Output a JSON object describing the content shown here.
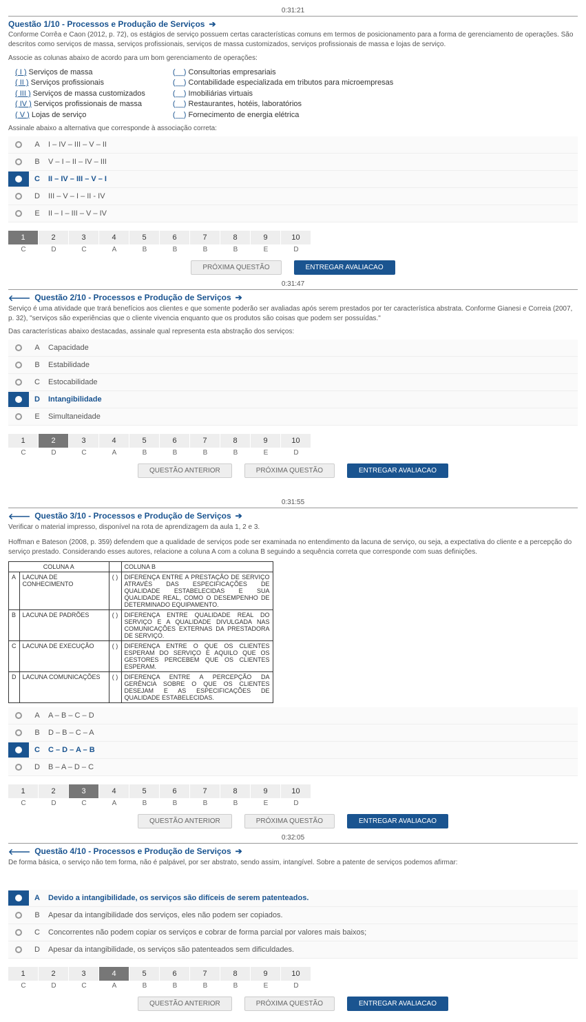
{
  "nav_answers": [
    "C",
    "D",
    "C",
    "A",
    "B",
    "B",
    "B",
    "B",
    "E",
    "D"
  ],
  "buttons": {
    "prev": "QUESTÃO ANTERIOR",
    "next": "PRÓXIMA QUESTÃO",
    "submit": "ENTREGAR AVALIACAO"
  },
  "q1": {
    "timer": "0:31:21",
    "title": "Questão 1/10 - Processos e Produção de Serviços",
    "intro": "Conforme Corrêa e Caon (2012, p. 72), os estágios de serviço possuem certas características comuns em termos de posicionamento para a forma de gerenciamento de operações. São descritos como serviços de massa, serviços profissionais, serviços de massa customizados, serviços profissionais de massa e lojas de serviço.",
    "assoc_prompt": "Associe as colunas abaixo de acordo para um bom gerenciamento de operações:",
    "left": [
      {
        "r": "( I )",
        "t": "Serviços de massa"
      },
      {
        "r": "( II )",
        "t": "Serviços profissionais"
      },
      {
        "r": "( III )",
        "t": "Serviços de massa customizados"
      },
      {
        "r": "( IV )",
        "t": "Serviços profissionais de massa"
      },
      {
        "r": "( V )",
        "t": "Lojas de serviço"
      }
    ],
    "right": [
      "Consultorias empresariais",
      "Contabilidade especializada em tributos para microempresas",
      "Imobiliárias virtuais",
      "Restaurantes, hotéis, laboratórios",
      "Fornecimento de energia elétrica"
    ],
    "choose": "Assinale abaixo a alternativa que corresponde à associação correta:",
    "opts": [
      {
        "l": "A",
        "t": "I – IV – III – V – II"
      },
      {
        "l": "B",
        "t": "V – I – II – IV – III"
      },
      {
        "l": "C",
        "t": "II – IV – III – V – I"
      },
      {
        "l": "D",
        "t": "III – V – I – II - IV"
      },
      {
        "l": "E",
        "t": "II – I – III – V – IV"
      }
    ],
    "selected": 2,
    "active_nav": 1
  },
  "q2": {
    "timer": "0:31:47",
    "title": "Questão 2/10 - Processos e Produção de Serviços",
    "intro": "Serviço é uma atividade que trará benefícios aos clientes e que somente poderão ser avaliadas após serem prestados por ter característica abstrata. Conforme Gianesi e Correia (2007, p. 32), \"serviços são experiências que o cliente vivencia enquanto que os produtos são coisas que podem ser possuídas.\"",
    "choose": "Das características abaixo destacadas, assinale qual representa esta abstração dos serviços:",
    "opts": [
      {
        "l": "A",
        "t": "Capacidade"
      },
      {
        "l": "B",
        "t": "Estabilidade"
      },
      {
        "l": "C",
        "t": "Estocabilidade"
      },
      {
        "l": "D",
        "t": "Intangibilidade"
      },
      {
        "l": "E",
        "t": "Simultaneidade"
      }
    ],
    "selected": 3,
    "active_nav": 2
  },
  "q3": {
    "timer": "0:31:55",
    "title": "Questão 3/10 - Processos e Produção de Serviços",
    "sub": "Verificar o material impresso, disponível na rota de aprendizagem da aula 1, 2 e 3.",
    "intro": "Hoffman e Bateson (2008, p. 359) defendem que a qualidade de serviços pode ser examinada no entendimento da lacuna de serviço, ou seja, a expectativa do cliente e a percepção do serviço prestado. Considerando esses autores, relacione a coluna A com a coluna B seguindo a sequência correta que corresponde com suas definições.",
    "table": {
      "headA": "COLUNA A",
      "headB": "COLUNA B",
      "rows": [
        {
          "a": "A",
          "al": "LACUNA DE CONHECIMENTO",
          "b": "DIFERENÇA ENTRE A PRESTAÇÃO DE SERVIÇO ATRAVÉS DAS ESPECIFICAÇÕES DE QUALIDADE ESTABELECIDAS E SUA QUALIDADE REAL, COMO O DESEMPENHO DE DETERMINADO EQUIPAMENTO."
        },
        {
          "a": "B",
          "al": "LACUNA DE PADRÕES",
          "b": "DIFERENÇA ENTRE QUALIDADE REAL DO SERVIÇO E A QUALIDADE DIVULGADA NAS COMUNICAÇÕES EXTERNAS DA PRESTADORA DE SERVIÇO."
        },
        {
          "a": "C",
          "al": "LACUNA DE EXECUÇÃO",
          "b": "DIFERENÇA ENTRE O QUE OS CLIENTES ESPERAM DO SERVIÇO E AQUILO QUE OS GESTORES PERCEBEM QUE OS CLIENTES ESPERAM."
        },
        {
          "a": "D",
          "al": "LACUNA COMUNICAÇÕES",
          "b": "DIFERENÇA ENTRE A PERCEPÇÃO DA GERÊNCIA SOBRE O QUE OS CLIENTES DESEJAM E AS ESPECIFICAÇÕES DE QUALIDADE ESTABELECIDAS."
        }
      ]
    },
    "opts": [
      {
        "l": "A",
        "t": "A – B – C – D"
      },
      {
        "l": "B",
        "t": "D – B – C – A"
      },
      {
        "l": "C",
        "t": "C – D – A – B"
      },
      {
        "l": "D",
        "t": "B – A – D – C"
      }
    ],
    "selected": 2,
    "active_nav": 3
  },
  "q4": {
    "timer": "0:32:05",
    "title": "Questão 4/10 - Processos e Produção de Serviços",
    "intro": "De forma básica, o serviço não tem forma, não é palpável, por ser abstrato, sendo assim, intangível. Sobre a patente de serviços podemos afirmar:",
    "opts": [
      {
        "l": "A",
        "t": "Devido a intangibilidade, os serviços são difíceis de serem patenteados."
      },
      {
        "l": "B",
        "t": "Apesar da intangibilidade dos serviços, eles não podem ser copiados."
      },
      {
        "l": "C",
        "t": "Concorrentes não podem copiar os serviços e cobrar de forma parcial por valores mais baixos;"
      },
      {
        "l": "D",
        "t": "Apesar da intangibilidade, os serviços são patenteados sem dificuldades."
      }
    ],
    "selected": 0,
    "active_nav": 4
  }
}
